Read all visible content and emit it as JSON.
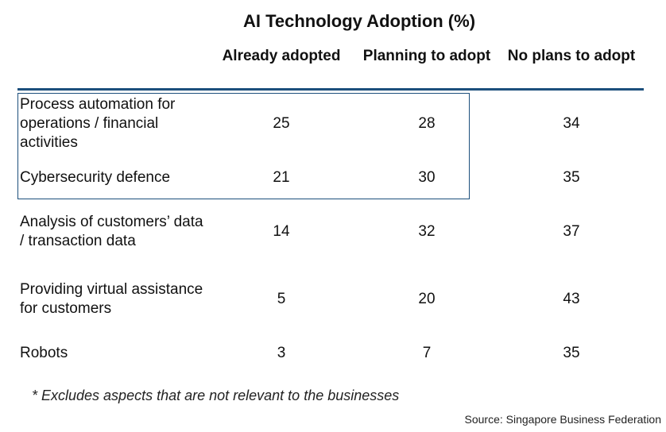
{
  "chart_data": {
    "type": "table",
    "title": "AI Technology Adoption (%)",
    "columns": [
      "Already adopted",
      "Planning to adopt",
      "No plans to adopt"
    ],
    "rows": [
      {
        "label": "Process automation for operations / financial activities",
        "values": [
          25,
          28,
          34
        ],
        "highlighted": true
      },
      {
        "label": "Cybersecurity defence",
        "values": [
          21,
          30,
          35
        ],
        "highlighted": true
      },
      {
        "label": "Analysis of customers’ data / transaction data",
        "values": [
          14,
          32,
          37
        ],
        "highlighted": false
      },
      {
        "label": "Providing virtual assistance for customers",
        "values": [
          5,
          20,
          43
        ],
        "highlighted": false
      },
      {
        "label": "Robots",
        "values": [
          3,
          7,
          35
        ],
        "highlighted": false
      }
    ],
    "footnote": "* Excludes aspects that are not relevant to the businesses",
    "source": "Source: Singapore Business Federation"
  },
  "colors": {
    "accent": "#1c4f7c"
  }
}
